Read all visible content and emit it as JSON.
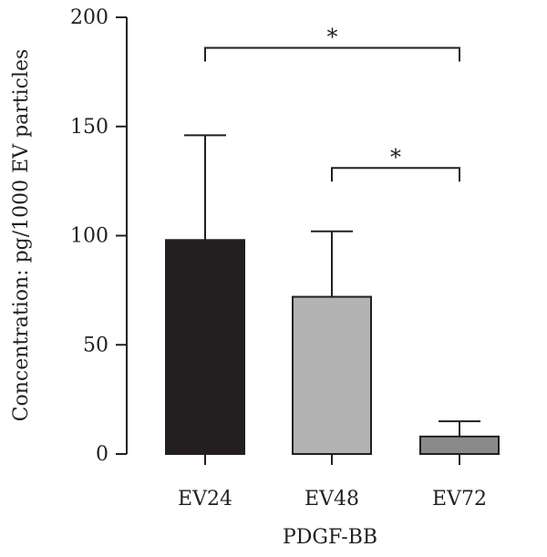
{
  "chart_data": {
    "type": "bar",
    "categories": [
      "EV24",
      "EV48",
      "EV72"
    ],
    "values": [
      98,
      72,
      8
    ],
    "errors": [
      48,
      30,
      7
    ],
    "colors": [
      "#231f20",
      "#b3b3b3",
      "#8a8a8a"
    ],
    "xlabel": "PDGF-BB",
    "ylabel": "Concentration: pg/1000 EV particles",
    "ylim": [
      0,
      200
    ],
    "yticks": [
      0,
      50,
      100,
      150,
      200
    ],
    "grid": false,
    "legend": "none",
    "significance": [
      {
        "from": "EV24",
        "to": "EV72",
        "level": 186,
        "label": "*"
      },
      {
        "from": "EV48",
        "to": "EV72",
        "level": 131,
        "label": "*"
      }
    ]
  }
}
